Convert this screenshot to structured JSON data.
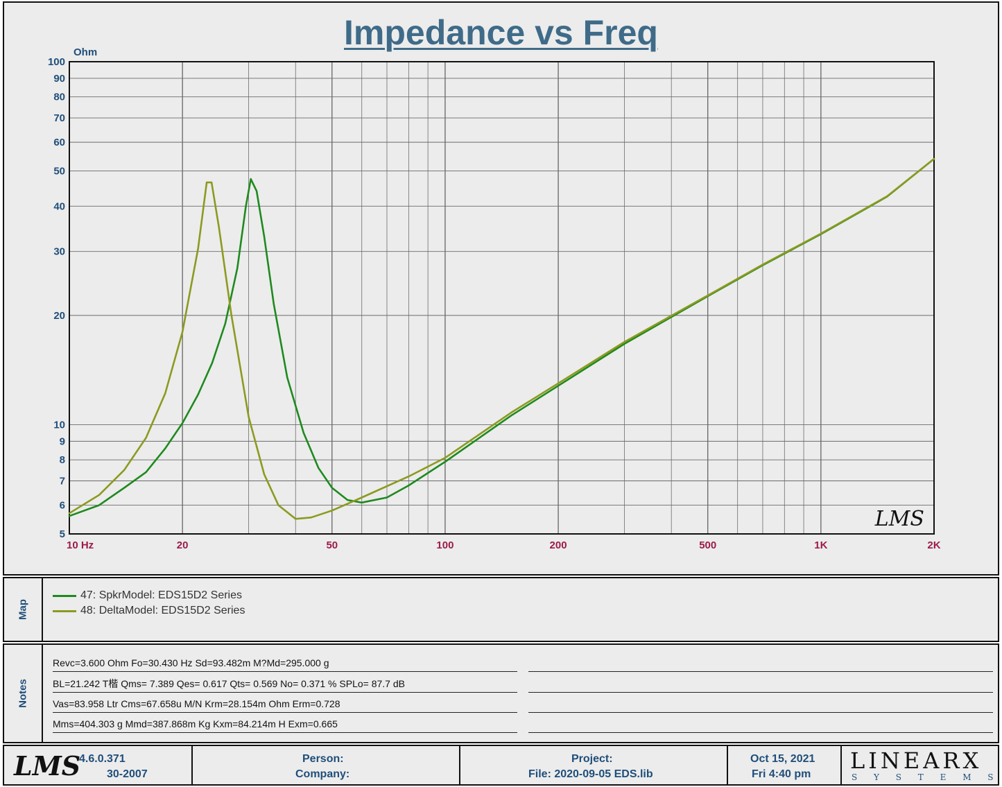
{
  "chart_data": {
    "type": "line",
    "title": "Impedance vs Freq",
    "ylabel": "Ohm",
    "x_scale": "log",
    "y_scale": "log",
    "xlim": [
      10,
      2000
    ],
    "ylim": [
      5,
      100
    ],
    "grid": true,
    "x_tick_labels": [
      {
        "v": 10,
        "t": "10  Hz"
      },
      {
        "v": 20,
        "t": "20"
      },
      {
        "v": 50,
        "t": "50"
      },
      {
        "v": 100,
        "t": "100"
      },
      {
        "v": 200,
        "t": "200"
      },
      {
        "v": 500,
        "t": "500"
      },
      {
        "v": 1000,
        "t": "1K"
      },
      {
        "v": 2000,
        "t": "2K"
      }
    ],
    "y_tick_labels": [
      5,
      6,
      7,
      8,
      9,
      10,
      20,
      30,
      40,
      50,
      60,
      70,
      80,
      90,
      100
    ],
    "series": [
      {
        "name": "47: SpkrModel: EDS15D2 Series",
        "color": "#1e8a1e",
        "points": [
          [
            10,
            5.6
          ],
          [
            12,
            6.0
          ],
          [
            14,
            6.7
          ],
          [
            16,
            7.4
          ],
          [
            18,
            8.6
          ],
          [
            20,
            10.1
          ],
          [
            22,
            12.1
          ],
          [
            24,
            14.8
          ],
          [
            26,
            19.0
          ],
          [
            28,
            27.0
          ],
          [
            29.5,
            40.0
          ],
          [
            30.4,
            47.5
          ],
          [
            31.5,
            44.0
          ],
          [
            33,
            33.0
          ],
          [
            35,
            21.5
          ],
          [
            38,
            13.5
          ],
          [
            42,
            9.5
          ],
          [
            46,
            7.6
          ],
          [
            50,
            6.7
          ],
          [
            55,
            6.2
          ],
          [
            60,
            6.1
          ],
          [
            70,
            6.3
          ],
          [
            80,
            6.8
          ],
          [
            100,
            7.9
          ],
          [
            150,
            10.6
          ],
          [
            200,
            12.8
          ],
          [
            300,
            16.7
          ],
          [
            500,
            22.6
          ],
          [
            700,
            27.5
          ],
          [
            1000,
            33.5
          ],
          [
            1500,
            42.5
          ],
          [
            2000,
            54.0
          ]
        ]
      },
      {
        "name": "48: DeltaModel: EDS15D2 Series",
        "color": "#8c9a1f",
        "points": [
          [
            10,
            5.7
          ],
          [
            12,
            6.4
          ],
          [
            14,
            7.5
          ],
          [
            16,
            9.2
          ],
          [
            18,
            12.2
          ],
          [
            20,
            18.0
          ],
          [
            22,
            30.5
          ],
          [
            23.2,
            46.5
          ],
          [
            23.9,
            46.5
          ],
          [
            25,
            35.0
          ],
          [
            27,
            20.0
          ],
          [
            30,
            10.5
          ],
          [
            33,
            7.3
          ],
          [
            36,
            6.0
          ],
          [
            40,
            5.5
          ],
          [
            44,
            5.55
          ],
          [
            50,
            5.8
          ],
          [
            60,
            6.3
          ],
          [
            80,
            7.2
          ],
          [
            100,
            8.1
          ],
          [
            150,
            10.8
          ],
          [
            200,
            13.0
          ],
          [
            300,
            16.9
          ],
          [
            500,
            22.7
          ],
          [
            700,
            27.6
          ],
          [
            1000,
            33.6
          ],
          [
            1500,
            42.6
          ],
          [
            2000,
            54.0
          ]
        ]
      }
    ]
  },
  "map": {
    "label": "Map",
    "legend": [
      {
        "text": "47: SpkrModel: EDS15D2 Series",
        "color": "#1e8a1e"
      },
      {
        "text": "48: DeltaModel: EDS15D2 Series",
        "color": "#8c9a1f"
      }
    ]
  },
  "notes": {
    "label": "Notes",
    "lines": [
      "Revc=3.600 Ohm  Fo=30.430 Hz  Sd=93.482m M?Md=295.000 g",
      "BL=21.242 T楷  Qms= 7.389  Qes= 0.617  Qts= 0.569  No= 0.371 %  SPLo= 87.7 dB",
      "Vas=83.958 Ltr  Cms=67.658u M/N  Krm=28.154m Ohm  Erm=0.728",
      "Mms=404.303 g  Mmd=387.868m Kg  Kxm=84.214m H  Exm=0.665"
    ]
  },
  "footer": {
    "logo": "LMS",
    "version": "4.6.0.371",
    "build": "30-2007",
    "person_label": "Person:",
    "company_label": "Company:",
    "project_label": "Project:",
    "file": "File: 2020-09-05 EDS.lib",
    "date": "Oct 15, 2021",
    "time": "Fri  4:40 pm",
    "brand_main": "LINEARX",
    "brand_sub": "S Y S T E M S"
  },
  "watermark_logo": "LMS"
}
